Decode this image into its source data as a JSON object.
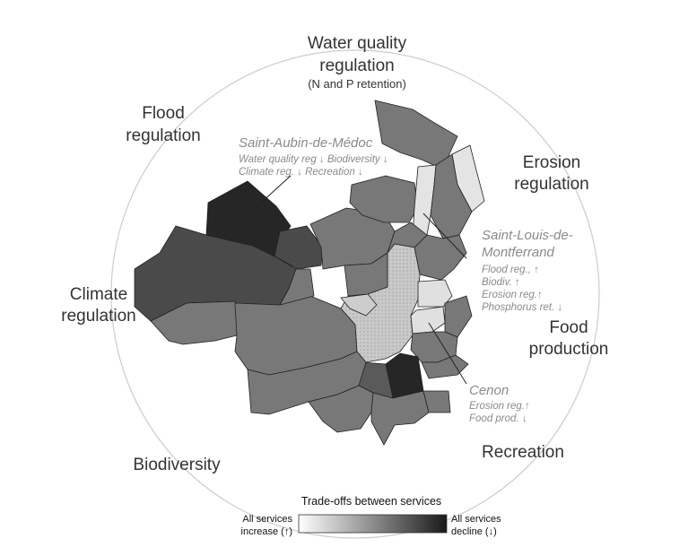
{
  "services": {
    "water": {
      "line1": "Water quality",
      "line2": "regulation",
      "line3": "(N and P retention)"
    },
    "flood": {
      "line1": "Flood",
      "line2": "regulation"
    },
    "erosion": {
      "line1": "Erosion",
      "line2": "regulation"
    },
    "climate": {
      "line1": "Climate",
      "line2": "regulation"
    },
    "food": {
      "line1": "Food",
      "line2": "production"
    },
    "recreation": {
      "label": "Recreation"
    },
    "biodiversity": {
      "label": "Biodiversity"
    }
  },
  "annotations": {
    "saint_aubin": {
      "name": "Saint-Aubin-de-Médoc",
      "line1": "Water quality reg ↓ Biodiversity ↓",
      "line2": "Climate reg. ↓ Recreation ↓"
    },
    "saint_louis": {
      "name1": "Saint-Louis-de-",
      "name2": "Montferrand",
      "line1": "Flood reg., ↑",
      "line2": "Biodiv. ↑",
      "line3": "Erosion reg.↑",
      "line4": "Phosphorus ret. ↓"
    },
    "cenon": {
      "name": "Cenon",
      "line1": "Erosion reg.↑",
      "line2": "Food prod. ↓"
    }
  },
  "legend": {
    "title": "Trade-offs between services",
    "left1": "All services",
    "left2": "increase (↑)",
    "right1": "All services",
    "right2": "decline (↓)"
  },
  "colors": {
    "darkest": "#262626",
    "dark": "#4a4a4a",
    "mid": "#787878",
    "light": "#dedede",
    "dotted": "#c6c6c6",
    "circle": "#cccccc"
  }
}
